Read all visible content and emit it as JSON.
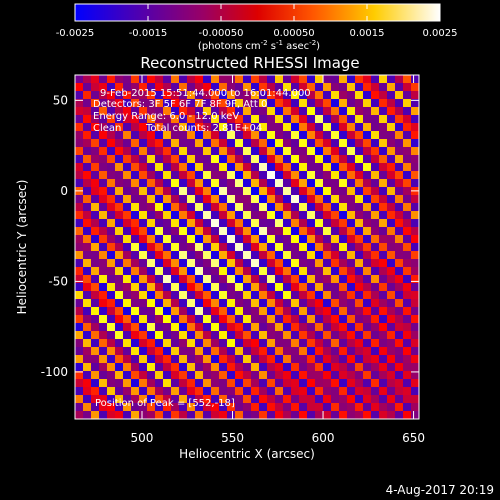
{
  "colorbar": {
    "vmin": -0.0025,
    "vmax": 0.0025,
    "tick_labels": [
      "-0.0025",
      "-0.0015",
      "-0.00050",
      "0.00050",
      "0.0015",
      "0.0025"
    ],
    "tick_values": [
      -0.0025,
      -0.0015,
      -0.0005,
      0.0005,
      0.0015,
      0.0025
    ],
    "units_line_1": "(photons cm",
    "units_exp_1": "-2",
    "units_line_2": " s",
    "units_exp_2": "-1",
    "units_line_3": " asec",
    "units_exp_3": "-2",
    "units_close": ")",
    "colormap_stops": [
      "#0000ff",
      "#5500aa",
      "#aa0055",
      "#ff0000",
      "#ff8800",
      "#ffff00",
      "#ffffff"
    ]
  },
  "chart_data": {
    "type": "heatmap",
    "title": "Reconstructed RHESSI Image",
    "xlabel": "Heliocentric X (arcsec)",
    "ylabel": "Heliocentric Y (arcsec)",
    "xlim": [
      463,
      653
    ],
    "ylim": [
      -126,
      64
    ],
    "x_ticks": [
      500,
      550,
      600,
      650
    ],
    "y_ticks": [
      50,
      0,
      -50,
      -100
    ],
    "x_tick_labels": [
      "500",
      "550",
      "600",
      "650"
    ],
    "y_tick_labels": [
      "50",
      "0",
      "-50",
      "-100"
    ],
    "peak": [
      552,
      -18
    ],
    "annotations": {
      "time_range": "9-Feb-2015 15:51:44.000 to 16:01:44.000",
      "detectors": "Detectors: 3F 5F 6F 7F 8F 9F, Att 0",
      "energy": "Energy Range: 6.0 - 12.0 keV",
      "method": "Clean",
      "counts": "Total counts: 2.81E+04",
      "peak_label": "Position of Peak = [552,-18]"
    }
  },
  "footer": {
    "date": "4-Aug-2017 20:19"
  }
}
